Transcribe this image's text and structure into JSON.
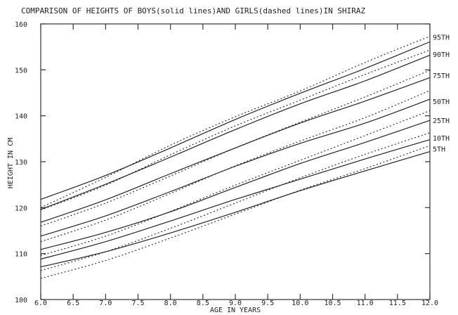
{
  "chart_data": {
    "type": "line",
    "title": "COMPARISON OF HEIGHTS OF BOYS(solid lines)AND GIRLS(dashed lines)IN SHIRAZ",
    "xlabel": "AGE IN YEARS",
    "ylabel": "HEIGHT IN CM",
    "xlim": [
      6.0,
      12.0
    ],
    "ylim": [
      100,
      160
    ],
    "x_ticks": [
      "6.0",
      "6.5",
      "7.0",
      "7.5",
      "8.0",
      "8.5",
      "9.0",
      "9.5",
      "10.0",
      "10.5",
      "11.0",
      "11.5",
      "12.0"
    ],
    "y_ticks": [
      "100",
      "110",
      "120",
      "130",
      "140",
      "150",
      "160"
    ],
    "grid": false,
    "legend_position": "right",
    "percentile_labels": [
      {
        "label": "95TH",
        "y": 157.2
      },
      {
        "label": "90TH",
        "y": 153.4
      },
      {
        "label": "75TH",
        "y": 148.8
      },
      {
        "label": "50TH",
        "y": 143.2
      },
      {
        "label": "25TH",
        "y": 139.0
      },
      {
        "label": "10TH",
        "y": 135.2
      },
      {
        "label": "5TH",
        "y": 132.8
      }
    ],
    "x": [
      6.0,
      7.0,
      8.0,
      9.0,
      10.0,
      11.0,
      12.0
    ],
    "series": [
      {
        "group": "boys",
        "percentile": "95TH",
        "style": "solid",
        "values": [
          121.8,
          127.0,
          133.0,
          139.2,
          144.9,
          150.3,
          156.1
        ]
      },
      {
        "group": "boys",
        "percentile": "90TH",
        "style": "solid",
        "values": [
          119.6,
          125.1,
          131.0,
          137.0,
          142.6,
          147.6,
          153.2
        ]
      },
      {
        "group": "boys",
        "percentile": "75TH",
        "style": "solid",
        "values": [
          116.8,
          121.7,
          127.4,
          133.0,
          138.4,
          143.2,
          148.3
        ]
      },
      {
        "group": "boys",
        "percentile": "50TH",
        "style": "solid",
        "values": [
          113.8,
          118.2,
          123.5,
          129.0,
          134.0,
          138.4,
          143.6
        ]
      },
      {
        "group": "boys",
        "percentile": "25TH",
        "style": "solid",
        "values": [
          110.9,
          114.6,
          119.1,
          124.4,
          129.6,
          134.2,
          139.0
        ]
      },
      {
        "group": "boys",
        "percentile": "10TH",
        "style": "solid",
        "values": [
          108.8,
          112.6,
          117.1,
          121.8,
          126.2,
          130.6,
          134.8
        ]
      },
      {
        "group": "boys",
        "percentile": "5TH",
        "style": "solid",
        "values": [
          107.1,
          110.4,
          114.5,
          119.0,
          123.7,
          128.0,
          132.2
        ]
      },
      {
        "group": "girls",
        "percentile": "95TH",
        "style": "dashed",
        "values": [
          120.0,
          126.6,
          133.6,
          139.8,
          145.4,
          151.6,
          157.3
        ]
      },
      {
        "group": "girls",
        "percentile": "90TH",
        "style": "dashed",
        "values": [
          119.5,
          124.9,
          131.5,
          137.8,
          143.4,
          149.0,
          154.3
        ]
      },
      {
        "group": "girls",
        "percentile": "75TH",
        "style": "dashed",
        "values": [
          116.0,
          121.0,
          126.9,
          133.0,
          138.6,
          144.1,
          149.9
        ]
      },
      {
        "group": "girls",
        "percentile": "50TH",
        "style": "dashed",
        "values": [
          112.6,
          117.3,
          123.1,
          129.1,
          134.5,
          139.6,
          145.5
        ]
      },
      {
        "group": "girls",
        "percentile": "25TH",
        "style": "dashed",
        "values": [
          109.6,
          113.8,
          119.2,
          124.9,
          130.3,
          135.7,
          141.1
        ]
      },
      {
        "group": "girls",
        "percentile": "10TH",
        "style": "dashed",
        "values": [
          106.3,
          110.4,
          115.5,
          121.0,
          126.5,
          131.6,
          136.3
        ]
      },
      {
        "group": "girls",
        "percentile": "5TH",
        "style": "dashed",
        "values": [
          104.6,
          108.5,
          113.4,
          118.6,
          123.8,
          128.5,
          133.5
        ]
      }
    ]
  }
}
